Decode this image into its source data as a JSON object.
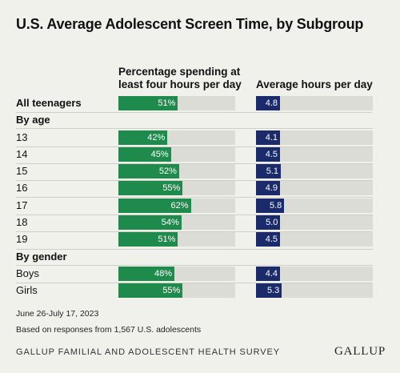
{
  "title": "U.S. Average Adolescent Screen Time, by Subgroup",
  "columns": {
    "pct_header": "Percentage spending at least four hours per day",
    "hours_header": "Average hours per day"
  },
  "groups": {
    "age": "By age",
    "gender": "By gender"
  },
  "footer": {
    "dates": "June 26-July 17, 2023",
    "basis": "Based on responses from 1,567 U.S. adolescents",
    "source": "GALLUP FAMILIAL AND ADOLESCENT HEALTH SURVEY",
    "logo": "GALLUP"
  },
  "colors": {
    "pct_bar": "#1e8a4c",
    "hours_bar": "#1a2a6b",
    "track": "#dcdcd6",
    "background": "#f1f1ec"
  },
  "chart_data": {
    "type": "bar",
    "categories": [
      "All teenagers",
      "13",
      "14",
      "15",
      "16",
      "17",
      "18",
      "19",
      "Boys",
      "Girls"
    ],
    "series": [
      {
        "name": "Percentage spending at least four hours per day",
        "values": [
          51,
          42,
          45,
          52,
          55,
          62,
          54,
          51,
          48,
          55
        ],
        "labels": [
          "51%",
          "42%",
          "45%",
          "52%",
          "55%",
          "62%",
          "54%",
          "51%",
          "48%",
          "55%"
        ],
        "max": 100
      },
      {
        "name": "Average hours per day",
        "values": [
          4.8,
          4.1,
          4.5,
          5.1,
          4.9,
          5.8,
          5.0,
          4.5,
          4.4,
          5.3
        ],
        "labels": [
          "4.8",
          "4.1",
          "4.5",
          "5.1",
          "4.9",
          "5.8",
          "5.0",
          "4.5",
          "4.4",
          "5.3"
        ],
        "max": 24
      }
    ]
  }
}
